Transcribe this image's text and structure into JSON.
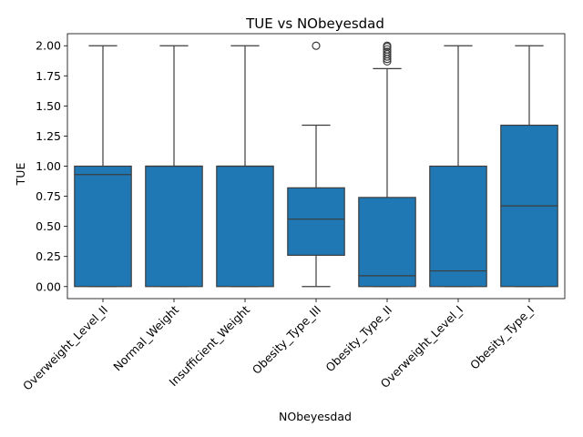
{
  "chart_data": {
    "type": "box",
    "title": "TUE vs NObeyesdad",
    "xlabel": "NObeyesdad",
    "ylabel": "TUE",
    "ylim": [
      -0.1,
      2.1
    ],
    "yticks": [
      0.0,
      0.25,
      0.5,
      0.75,
      1.0,
      1.25,
      1.5,
      1.75,
      2.0
    ],
    "ytick_labels": [
      "0.00",
      "0.25",
      "0.50",
      "0.75",
      "1.00",
      "1.25",
      "1.50",
      "1.75",
      "2.00"
    ],
    "grid": false,
    "box_color": "#1f77b4",
    "edge_color": "#3d3d3d",
    "categories": [
      "Overweight_Level_II",
      "Normal_Weight",
      "Insufficient_Weight",
      "Obesity_Type_III",
      "Obesity_Type_II",
      "Overweight_Level_I",
      "Obesity_Type_I"
    ],
    "boxes": [
      {
        "category": "Overweight_Level_II",
        "whisker_low": 0.0,
        "q1": 0.0,
        "median": 0.93,
        "q3": 1.0,
        "whisker_high": 2.0,
        "outliers": []
      },
      {
        "category": "Normal_Weight",
        "whisker_low": 0.0,
        "q1": 0.0,
        "median": 1.0,
        "q3": 1.0,
        "whisker_high": 2.0,
        "outliers": []
      },
      {
        "category": "Insufficient_Weight",
        "whisker_low": 0.0,
        "q1": 0.0,
        "median": 1.0,
        "q3": 1.0,
        "whisker_high": 2.0,
        "outliers": []
      },
      {
        "category": "Obesity_Type_III",
        "whisker_low": 0.0,
        "q1": 0.26,
        "median": 0.56,
        "q3": 0.82,
        "whisker_high": 1.34,
        "outliers": [
          2.0
        ]
      },
      {
        "category": "Obesity_Type_II",
        "whisker_low": 0.0,
        "q1": 0.0,
        "median": 0.09,
        "q3": 0.74,
        "whisker_high": 1.81,
        "outliers": [
          1.87,
          1.89,
          1.91,
          1.93,
          1.95,
          1.97,
          1.99,
          2.0
        ]
      },
      {
        "category": "Overweight_Level_I",
        "whisker_low": 0.0,
        "q1": 0.0,
        "median": 0.13,
        "q3": 1.0,
        "whisker_high": 2.0,
        "outliers": []
      },
      {
        "category": "Obesity_Type_I",
        "whisker_low": 0.0,
        "q1": 0.0,
        "median": 0.67,
        "q3": 1.34,
        "whisker_high": 2.0,
        "outliers": []
      }
    ]
  }
}
